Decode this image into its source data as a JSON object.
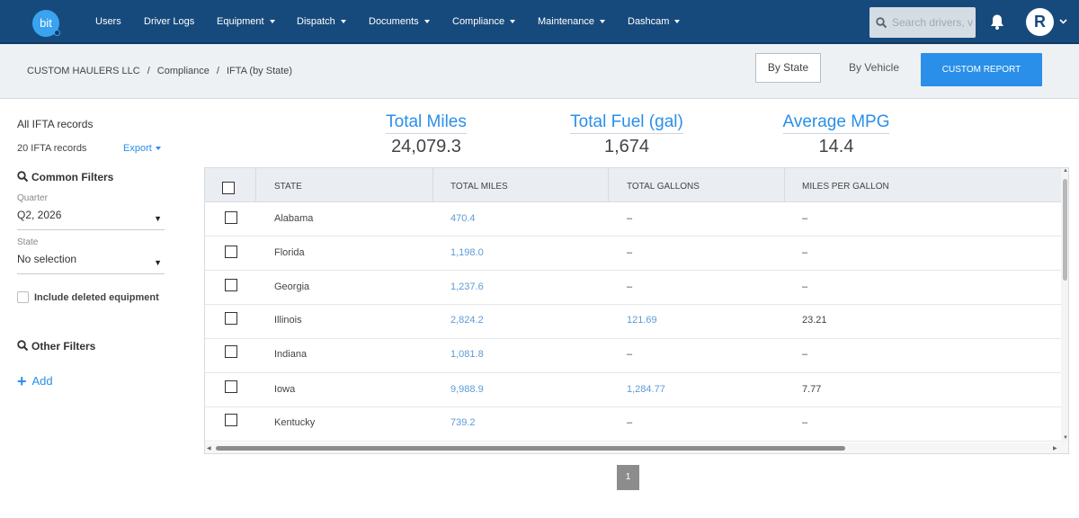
{
  "nav": {
    "logo_text": "bit",
    "items": [
      "Users",
      "Driver Logs",
      "Equipment",
      "Dispatch",
      "Documents",
      "Compliance",
      "Maintenance",
      "Dashcam"
    ],
    "search_placeholder": "Search drivers, v",
    "avatar_initial": "R"
  },
  "breadcrumb": {
    "company": "CUSTOM HAULERS LLC",
    "section": "Compliance",
    "page": "IFTA (by State)"
  },
  "view_toggle": {
    "by_state": "By State",
    "by_vehicle": "By Vehicle",
    "custom_report": "CUSTOM REPORT"
  },
  "sidebar": {
    "title": "All IFTA records",
    "records_count": "20 IFTA records",
    "export_label": "Export",
    "common_filters_title": "Common Filters",
    "quarter_label": "Quarter",
    "quarter_value": "Q2, 2026",
    "state_label": "State",
    "state_value": "No selection",
    "include_deleted_label": "Include deleted equipment",
    "other_filters_title": "Other Filters",
    "add_label": "Add"
  },
  "stats": {
    "total_miles_label": "Total Miles",
    "total_miles_value": "24,079.3",
    "total_fuel_label": "Total Fuel (gal)",
    "total_fuel_value": "1,674",
    "avg_mpg_label": "Average MPG",
    "avg_mpg_value": "14.4"
  },
  "table": {
    "headers": [
      "STATE",
      "TOTAL MILES",
      "TOTAL GALLONS",
      "MILES PER GALLON"
    ],
    "rows": [
      {
        "state": "Alabama",
        "miles": "470.4",
        "gallons": "–",
        "mpg": "–"
      },
      {
        "state": "Florida",
        "miles": "1,198.0",
        "gallons": "–",
        "mpg": "–"
      },
      {
        "state": "Georgia",
        "miles": "1,237.6",
        "gallons": "–",
        "mpg": "–"
      },
      {
        "state": "Illinois",
        "miles": "2,824.2",
        "gallons": "121.69",
        "mpg": "23.21"
      },
      {
        "state": "Indiana",
        "miles": "1,081.8",
        "gallons": "–",
        "mpg": "–"
      },
      {
        "state": "Iowa",
        "miles": "9,988.9",
        "gallons": "1,284.77",
        "mpg": "7.77"
      },
      {
        "state": "Kentucky",
        "miles": "739.2",
        "gallons": "–",
        "mpg": "–"
      }
    ]
  },
  "pagination": {
    "current_page": "1"
  },
  "colors": {
    "nav_bg": "#174a7c",
    "accent": "#2a8fe8",
    "link": "#5b9bd8"
  }
}
